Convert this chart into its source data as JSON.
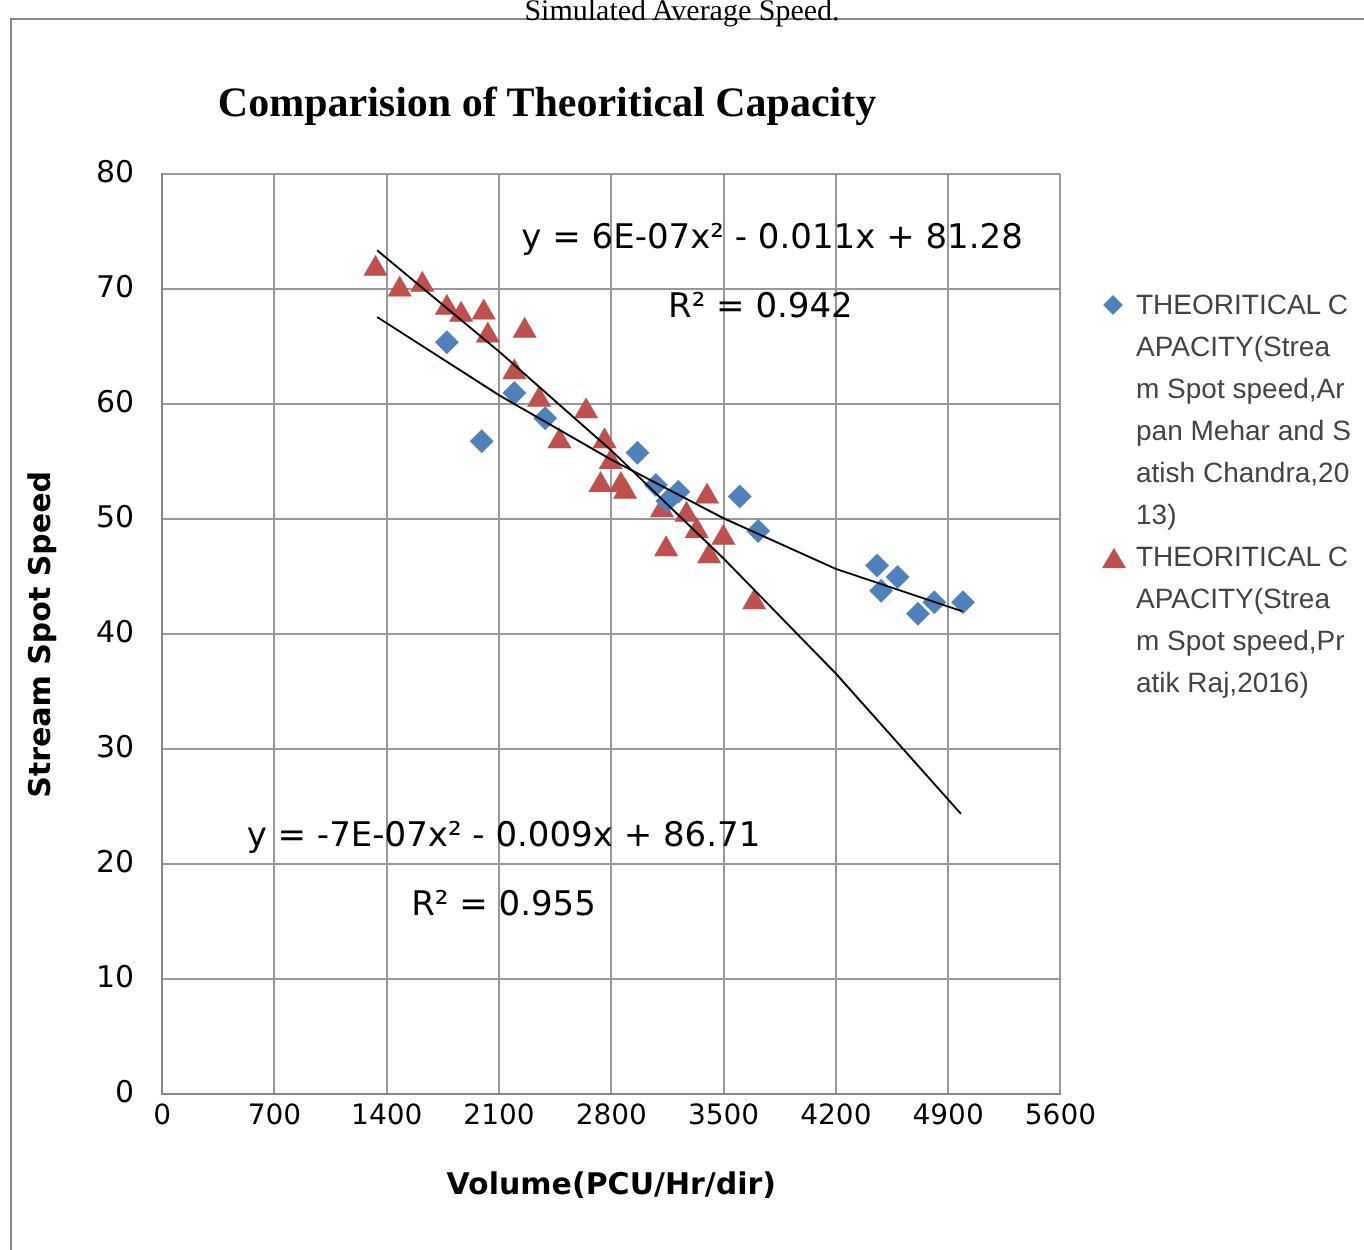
{
  "chart_data": {
    "type": "scatter",
    "title": "Comparision of Theoritical Capacity",
    "xlabel": "Volume(PCU/Hr/dir)",
    "ylabel": "Stream Spot Speed",
    "xlim": [
      0,
      5600
    ],
    "xticks": [
      0,
      700,
      1400,
      2100,
      2800,
      3500,
      4200,
      4900,
      5600
    ],
    "ylim": [
      0,
      80
    ],
    "yticks": [
      0,
      10,
      20,
      30,
      40,
      50,
      60,
      70,
      80
    ],
    "grid": true,
    "legend": "right",
    "annotations": [
      "Simulated Average Speed.",
      "y = 6E-07x² - 0.011x + 81.28",
      "R² = 0.942",
      "y = -7E-07x² - 0.009x + 86.71",
      "R² = 0.955"
    ],
    "series": [
      {
        "name": "THEORITICAL CAPACITY(Stream Spot speed,Arpan Mehar and Satish Chandra,2013)",
        "marker": "diamond",
        "color": "#4f81bd",
        "x": [
          1775,
          1992,
          2196,
          2388,
          2963,
          3078,
          3150,
          3218,
          3601,
          3716,
          4457,
          4483,
          4585,
          4712,
          4814,
          4993
        ],
        "values": [
          65.4,
          56.8,
          61.0,
          58.8,
          55.8,
          53.0,
          51.6,
          52.4,
          52.0,
          49.0,
          46.0,
          43.8,
          45.0,
          41.8,
          42.8,
          42.8
        ]
      },
      {
        "name": "THEORITICAL CAPACITY(Stream Spot speed,Pratik Raj,2016)",
        "marker": "triangle",
        "color": "#c0504d",
        "x": [
          1330,
          1481,
          1622,
          1775,
          1864,
          2005,
          2030,
          2196,
          2260,
          2350,
          2477,
          2643,
          2733,
          2758,
          2797,
          2860,
          2886,
          3116,
          3142,
          3269,
          3333,
          3397,
          3410,
          3499,
          3691
        ],
        "values": [
          71.8,
          70.0,
          70.4,
          68.4,
          67.8,
          68.0,
          66.0,
          62.8,
          66.4,
          60.4,
          56.8,
          59.4,
          53.0,
          56.8,
          55.0,
          53.0,
          52.4,
          50.8,
          47.4,
          50.4,
          49.0,
          52.0,
          46.8,
          48.4,
          42.8
        ]
      },
      {
        "type": "line",
        "marker": "none",
        "color": "#000000",
        "x": [
          1340,
          2100,
          2800,
          3500,
          4200,
          4990
        ],
        "values": [
          67.6,
          60.8,
          55.2,
          50.1,
          45.7,
          42.0
        ]
      },
      {
        "type": "line",
        "marker": "none",
        "color": "#000000",
        "x": [
          1340,
          2100,
          2800,
          3500,
          4200,
          4980
        ],
        "values": [
          73.4,
          64.6,
          56.0,
          46.6,
          36.6,
          24.4
        ]
      }
    ]
  }
}
